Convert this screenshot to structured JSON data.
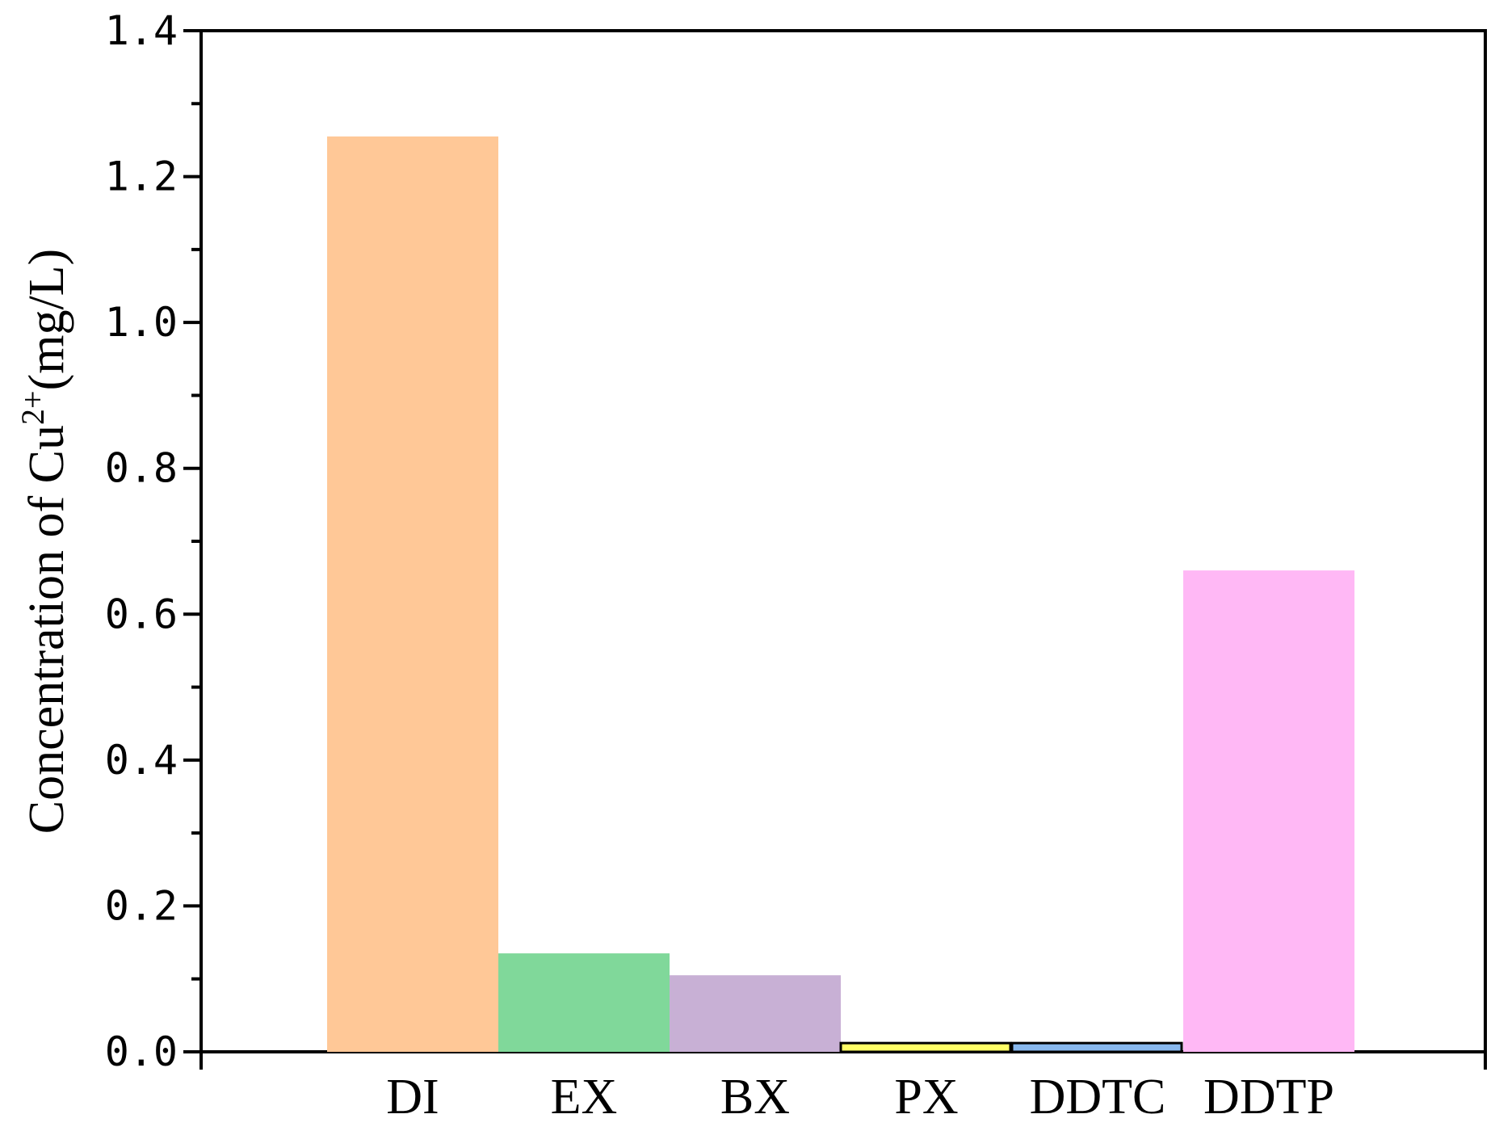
{
  "chart_data": {
    "type": "bar",
    "title": "",
    "xlabel": "",
    "ylabel": {
      "prefix": "Concentration of Cu",
      "superscript": "2+",
      "suffix": "(mg/L)"
    },
    "categories": [
      "DI",
      "EX",
      "BX",
      "PX",
      "DDTC",
      "DDTP"
    ],
    "values": [
      1.255,
      0.135,
      0.105,
      0.012,
      0.012,
      0.66
    ],
    "colors": [
      "#FFC897",
      "#80D89A",
      "#C8B0D5",
      "#FFFF66",
      "#88B8EE",
      "#FFB8F5"
    ],
    "ylim": [
      0,
      1.4
    ],
    "yticks": [
      "0.0",
      "0.2",
      "0.4",
      "0.6",
      "0.8",
      "1.0",
      "1.2",
      "1.4"
    ],
    "grid": false,
    "legend": "none"
  }
}
